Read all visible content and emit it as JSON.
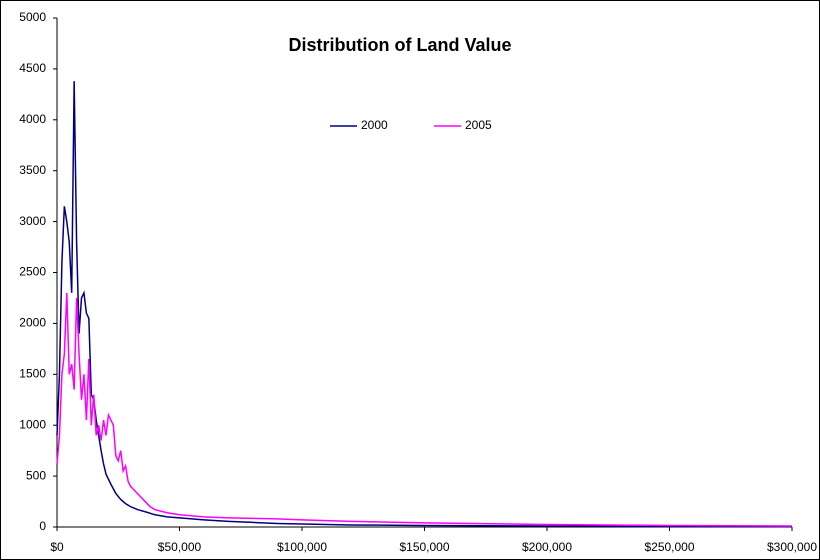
{
  "chart_data": {
    "type": "line",
    "title": "Distribution of Land Value",
    "legend": "upper center",
    "xlim": [
      0,
      300000
    ],
    "xticks": [
      {
        "value": 0,
        "label": "$0"
      },
      {
        "value": 50000,
        "label": "$50,000"
      },
      {
        "value": 100000,
        "label": "$100,000"
      },
      {
        "value": 150000,
        "label": "$150,000"
      },
      {
        "value": 200000,
        "label": "$200,000"
      },
      {
        "value": 250000,
        "label": "$250,000"
      },
      {
        "value": 300000,
        "label": "$300,000"
      }
    ],
    "ylim": [
      0,
      5000
    ],
    "yticks": [
      0,
      500,
      1000,
      1500,
      2000,
      2500,
      3000,
      3500,
      4000,
      4500,
      5000
    ],
    "series": [
      {
        "name": "2000",
        "color": "#000080",
        "x": [
          0,
          1000,
          2000,
          3000,
          4000,
          5000,
          6000,
          7000,
          8000,
          9000,
          10000,
          11000,
          12000,
          13000,
          14000,
          15000,
          16000,
          17000,
          18000,
          19000,
          20000,
          22000,
          24000,
          26000,
          28000,
          30000,
          33000,
          36000,
          40000,
          45000,
          50000,
          60000,
          70000,
          80000,
          90000,
          100000,
          120000,
          150000,
          200000,
          250000,
          300000
        ],
        "values": [
          900,
          1500,
          2600,
          3150,
          3000,
          2800,
          2300,
          4380,
          2800,
          1900,
          2250,
          2300,
          2100,
          2050,
          1300,
          1250,
          1050,
          900,
          750,
          620,
          520,
          420,
          330,
          270,
          230,
          200,
          170,
          150,
          120,
          100,
          90,
          70,
          55,
          45,
          35,
          30,
          20,
          15,
          10,
          5,
          3
        ]
      },
      {
        "name": "2005",
        "color": "#ff00ff",
        "x": [
          0,
          1000,
          2000,
          3000,
          4000,
          5000,
          6000,
          7000,
          8000,
          9000,
          10000,
          11000,
          12000,
          13000,
          14000,
          15000,
          16000,
          17000,
          18000,
          19000,
          20000,
          21000,
          22000,
          23000,
          24000,
          25000,
          26000,
          27000,
          28000,
          29000,
          30000,
          32000,
          34000,
          36000,
          38000,
          40000,
          45000,
          50000,
          60000,
          70000,
          80000,
          90000,
          100000,
          120000,
          150000,
          200000,
          250000,
          300000
        ],
        "values": [
          620,
          900,
          1500,
          1700,
          2300,
          1500,
          1600,
          1350,
          2250,
          1700,
          1250,
          1500,
          1050,
          1650,
          1000,
          1300,
          900,
          1000,
          850,
          1050,
          900,
          1100,
          1050,
          1000,
          700,
          650,
          750,
          550,
          600,
          450,
          400,
          350,
          300,
          250,
          200,
          170,
          140,
          120,
          100,
          90,
          85,
          80,
          70,
          55,
          40,
          25,
          15,
          10
        ]
      }
    ]
  }
}
